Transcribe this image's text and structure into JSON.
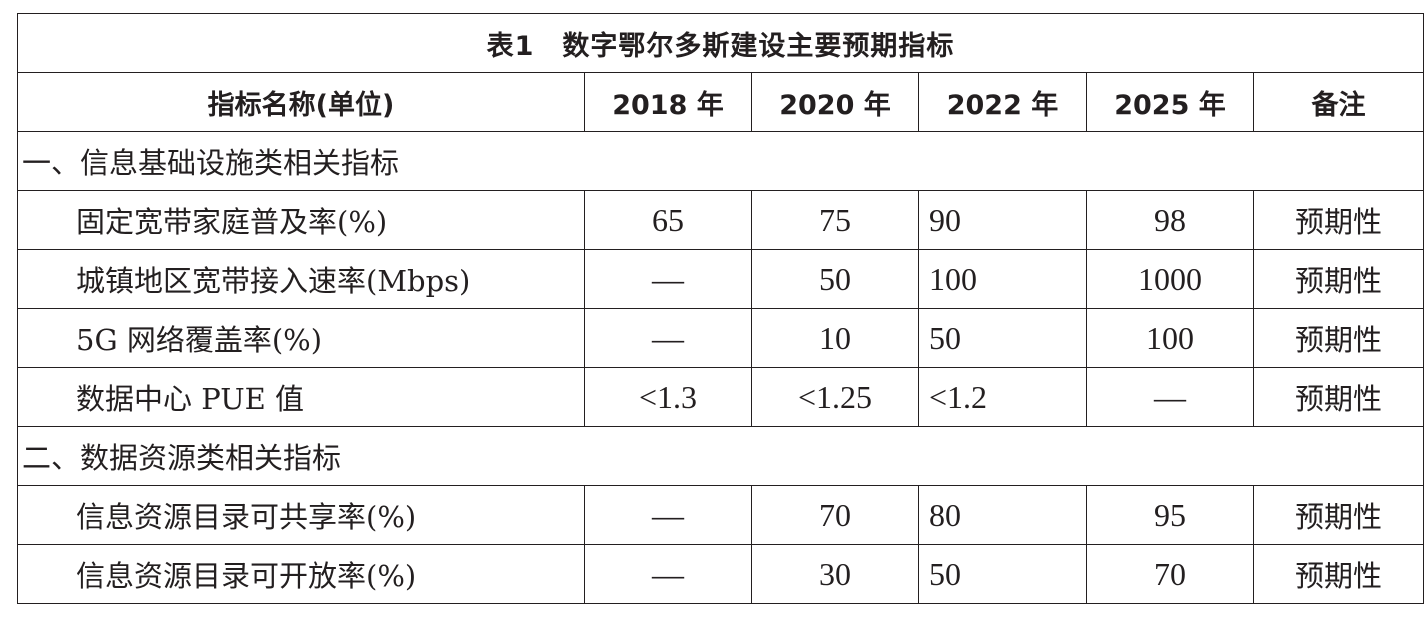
{
  "table": {
    "title": "表1　数字鄂尔多斯建设主要预期指标",
    "headers": [
      "指标名称(单位)",
      "2018 年",
      "2020 年",
      "2022 年",
      "2025 年",
      "备注"
    ],
    "sections": [
      {
        "title": "一、信息基础设施类相关指标",
        "rows": [
          {
            "name": "固定宽带家庭普及率(%)",
            "v2018": "65",
            "v2020": "75",
            "v2022": "90",
            "v2025": "98",
            "note": "预期性"
          },
          {
            "name": "城镇地区宽带接入速率(Mbps)",
            "v2018": "—",
            "v2020": "50",
            "v2022": "100",
            "v2025": "1000",
            "note": "预期性"
          },
          {
            "name": "5G 网络覆盖率(%)",
            "v2018": "—",
            "v2020": "10",
            "v2022": "50",
            "v2025": "100",
            "note": "预期性"
          },
          {
            "name": "数据中心 PUE 值",
            "v2018": "<1.3",
            "v2020": "<1.25",
            "v2022": "<1.2",
            "v2025": "—",
            "note": "预期性"
          }
        ]
      },
      {
        "title": "二、数据资源类相关指标",
        "rows": [
          {
            "name": "信息资源目录可共享率(%)",
            "v2018": "—",
            "v2020": "70",
            "v2022": "80",
            "v2025": "95",
            "note": "预期性"
          },
          {
            "name": "信息资源目录可开放率(%)",
            "v2018": "—",
            "v2020": "30",
            "v2022": "50",
            "v2025": "70",
            "note": "预期性"
          }
        ]
      }
    ]
  }
}
